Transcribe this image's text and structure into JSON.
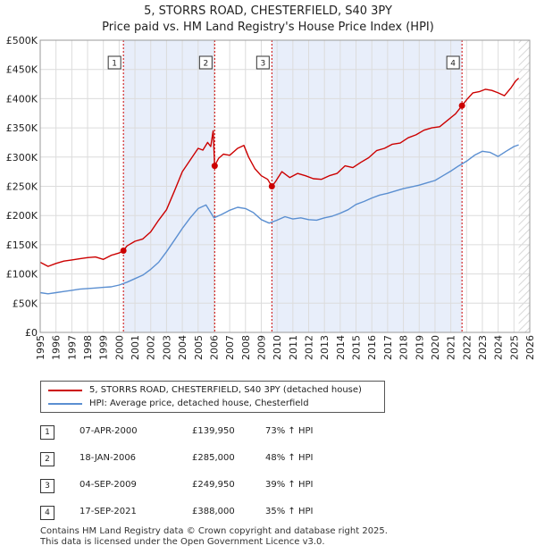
{
  "title_line1": "5, STORRS ROAD, CHESTERFIELD, S40 3PY",
  "title_line2": "Price paid vs. HM Land Registry's House Price Index (HPI)",
  "chart_data": {
    "type": "line",
    "title": "5, STORRS ROAD, CHESTERFIELD, S40 3PY",
    "subtitle": "Price paid vs. HM Land Registry's House Price Index (HPI)",
    "xlim": [
      1995,
      2026
    ],
    "ylim": [
      0,
      500000
    ],
    "y_ticks": [
      0,
      50000,
      100000,
      150000,
      200000,
      250000,
      300000,
      350000,
      400000,
      450000,
      500000
    ],
    "y_tick_labels": [
      "£0",
      "£50K",
      "£100K",
      "£150K",
      "£200K",
      "£250K",
      "£300K",
      "£350K",
      "£400K",
      "£450K",
      "£500K"
    ],
    "x_ticks": [
      1995,
      1996,
      1997,
      1998,
      1999,
      2000,
      2001,
      2002,
      2003,
      2004,
      2005,
      2006,
      2007,
      2008,
      2009,
      2010,
      2011,
      2012,
      2013,
      2014,
      2015,
      2016,
      2017,
      2018,
      2019,
      2020,
      2021,
      2022,
      2023,
      2024,
      2025,
      2026
    ],
    "x_tick_labels": [
      "1995",
      "1996",
      "1997",
      "1998",
      "1999",
      "2000",
      "2001",
      "2002",
      "2003",
      "2004",
      "2005",
      "2006",
      "2007",
      "2008",
      "2009",
      "2010",
      "2011",
      "2012",
      "2013",
      "2014",
      "2015",
      "2016",
      "2017",
      "2018",
      "2019",
      "2020",
      "2021",
      "2022",
      "2023",
      "2024",
      "2025",
      "2026"
    ],
    "grid": true,
    "shaded_ranges": [
      [
        2000.27,
        2006.05
      ],
      [
        2009.67,
        2021.71
      ]
    ],
    "future_hatch_from": 2025.3,
    "series": [
      {
        "name": "5, STORRS ROAD, CHESTERFIELD, S40 3PY (detached house)",
        "color": "#cc0000",
        "x": [
          1995.0,
          1995.5,
          1996.0,
          1996.5,
          1997.0,
          1997.5,
          1998.0,
          1998.5,
          1999.0,
          1999.5,
          2000.0,
          2000.27,
          2000.5,
          2001.0,
          2001.5,
          2002.0,
          2002.5,
          2003.0,
          2003.5,
          2004.0,
          2004.5,
          2005.0,
          2005.3,
          2005.6,
          2005.8,
          2005.95,
          2006.05,
          2006.3,
          2006.6,
          2007.0,
          2007.5,
          2007.9,
          2008.2,
          2008.6,
          2009.0,
          2009.4,
          2009.67,
          2009.9,
          2010.3,
          2010.8,
          2011.3,
          2011.8,
          2012.3,
          2012.8,
          2013.3,
          2013.8,
          2014.3,
          2014.8,
          2015.3,
          2015.8,
          2016.3,
          2016.8,
          2017.3,
          2017.8,
          2018.3,
          2018.8,
          2019.3,
          2019.8,
          2020.3,
          2020.8,
          2021.3,
          2021.71,
          2022.0,
          2022.4,
          2022.8,
          2023.2,
          2023.6,
          2024.0,
          2024.4,
          2024.8,
          2025.1,
          2025.3
        ],
        "y": [
          120000,
          113000,
          118000,
          122000,
          124000,
          126000,
          128000,
          129000,
          125000,
          132000,
          136000,
          139950,
          148000,
          156000,
          160000,
          172000,
          192000,
          210000,
          242000,
          275000,
          295000,
          315000,
          312000,
          325000,
          318000,
          345000,
          285000,
          298000,
          305000,
          303000,
          315000,
          320000,
          300000,
          280000,
          268000,
          262000,
          249950,
          258000,
          275000,
          265000,
          272000,
          268000,
          263000,
          262000,
          268000,
          272000,
          285000,
          282000,
          291000,
          299000,
          311000,
          315000,
          322000,
          324000,
          333000,
          338000,
          346000,
          350000,
          352000,
          363000,
          374000,
          388000,
          398000,
          410000,
          412000,
          416000,
          414000,
          410000,
          405000,
          418000,
          430000,
          435000
        ]
      },
      {
        "name": "HPI: Average price, detached house, Chesterfield",
        "color": "#5b8fd1",
        "x": [
          1995.0,
          1995.5,
          1996.0,
          1996.5,
          1997.0,
          1997.5,
          1998.0,
          1998.5,
          1999.0,
          1999.5,
          2000.0,
          2000.5,
          2001.0,
          2001.5,
          2002.0,
          2002.5,
          2003.0,
          2003.5,
          2004.0,
          2004.5,
          2005.0,
          2005.5,
          2006.0,
          2006.5,
          2007.0,
          2007.5,
          2008.0,
          2008.5,
          2009.0,
          2009.5,
          2010.0,
          2010.5,
          2011.0,
          2011.5,
          2012.0,
          2012.5,
          2013.0,
          2013.5,
          2014.0,
          2014.5,
          2015.0,
          2015.5,
          2016.0,
          2016.5,
          2017.0,
          2017.5,
          2018.0,
          2018.5,
          2019.0,
          2019.5,
          2020.0,
          2020.5,
          2021.0,
          2021.5,
          2022.0,
          2022.5,
          2023.0,
          2023.5,
          2024.0,
          2024.5,
          2025.0,
          2025.3
        ],
        "y": [
          68000,
          66000,
          68000,
          70000,
          72000,
          74000,
          75000,
          76000,
          77000,
          78000,
          81000,
          86000,
          92000,
          98000,
          108000,
          120000,
          138000,
          158000,
          178000,
          196000,
          212000,
          218000,
          196000,
          202000,
          209000,
          214000,
          212000,
          205000,
          193000,
          187000,
          192000,
          198000,
          194000,
          196000,
          193000,
          192000,
          196000,
          199000,
          204000,
          210000,
          219000,
          224000,
          230000,
          235000,
          238000,
          242000,
          246000,
          249000,
          252000,
          256000,
          260000,
          268000,
          276000,
          285000,
          293000,
          303000,
          310000,
          308000,
          301000,
          310000,
          318000,
          321000
        ]
      }
    ],
    "sales": [
      {
        "label": "1",
        "x": 2000.27,
        "y": 139950
      },
      {
        "label": "2",
        "x": 2006.05,
        "y": 285000
      },
      {
        "label": "3",
        "x": 2009.67,
        "y": 249950
      },
      {
        "label": "4",
        "x": 2021.71,
        "y": 388000
      }
    ]
  },
  "legend": {
    "items": [
      {
        "label": "5, STORRS ROAD, CHESTERFIELD, S40 3PY (detached house)",
        "color": "#cc0000"
      },
      {
        "label": "HPI: Average price, detached house, Chesterfield",
        "color": "#5b8fd1"
      }
    ]
  },
  "transactions": [
    {
      "num": "1",
      "date": "07-APR-2000",
      "price": "£139,950",
      "hpi": "73% ↑ HPI"
    },
    {
      "num": "2",
      "date": "18-JAN-2006",
      "price": "£285,000",
      "hpi": "48% ↑ HPI"
    },
    {
      "num": "3",
      "date": "04-SEP-2009",
      "price": "£249,950",
      "hpi": "39% ↑ HPI"
    },
    {
      "num": "4",
      "date": "17-SEP-2021",
      "price": "£388,000",
      "hpi": "35% ↑ HPI"
    }
  ],
  "footer": {
    "line1": "Contains HM Land Registry data © Crown copyright and database right 2025.",
    "line2": "This data is licensed under the Open Government Licence v3.0."
  }
}
